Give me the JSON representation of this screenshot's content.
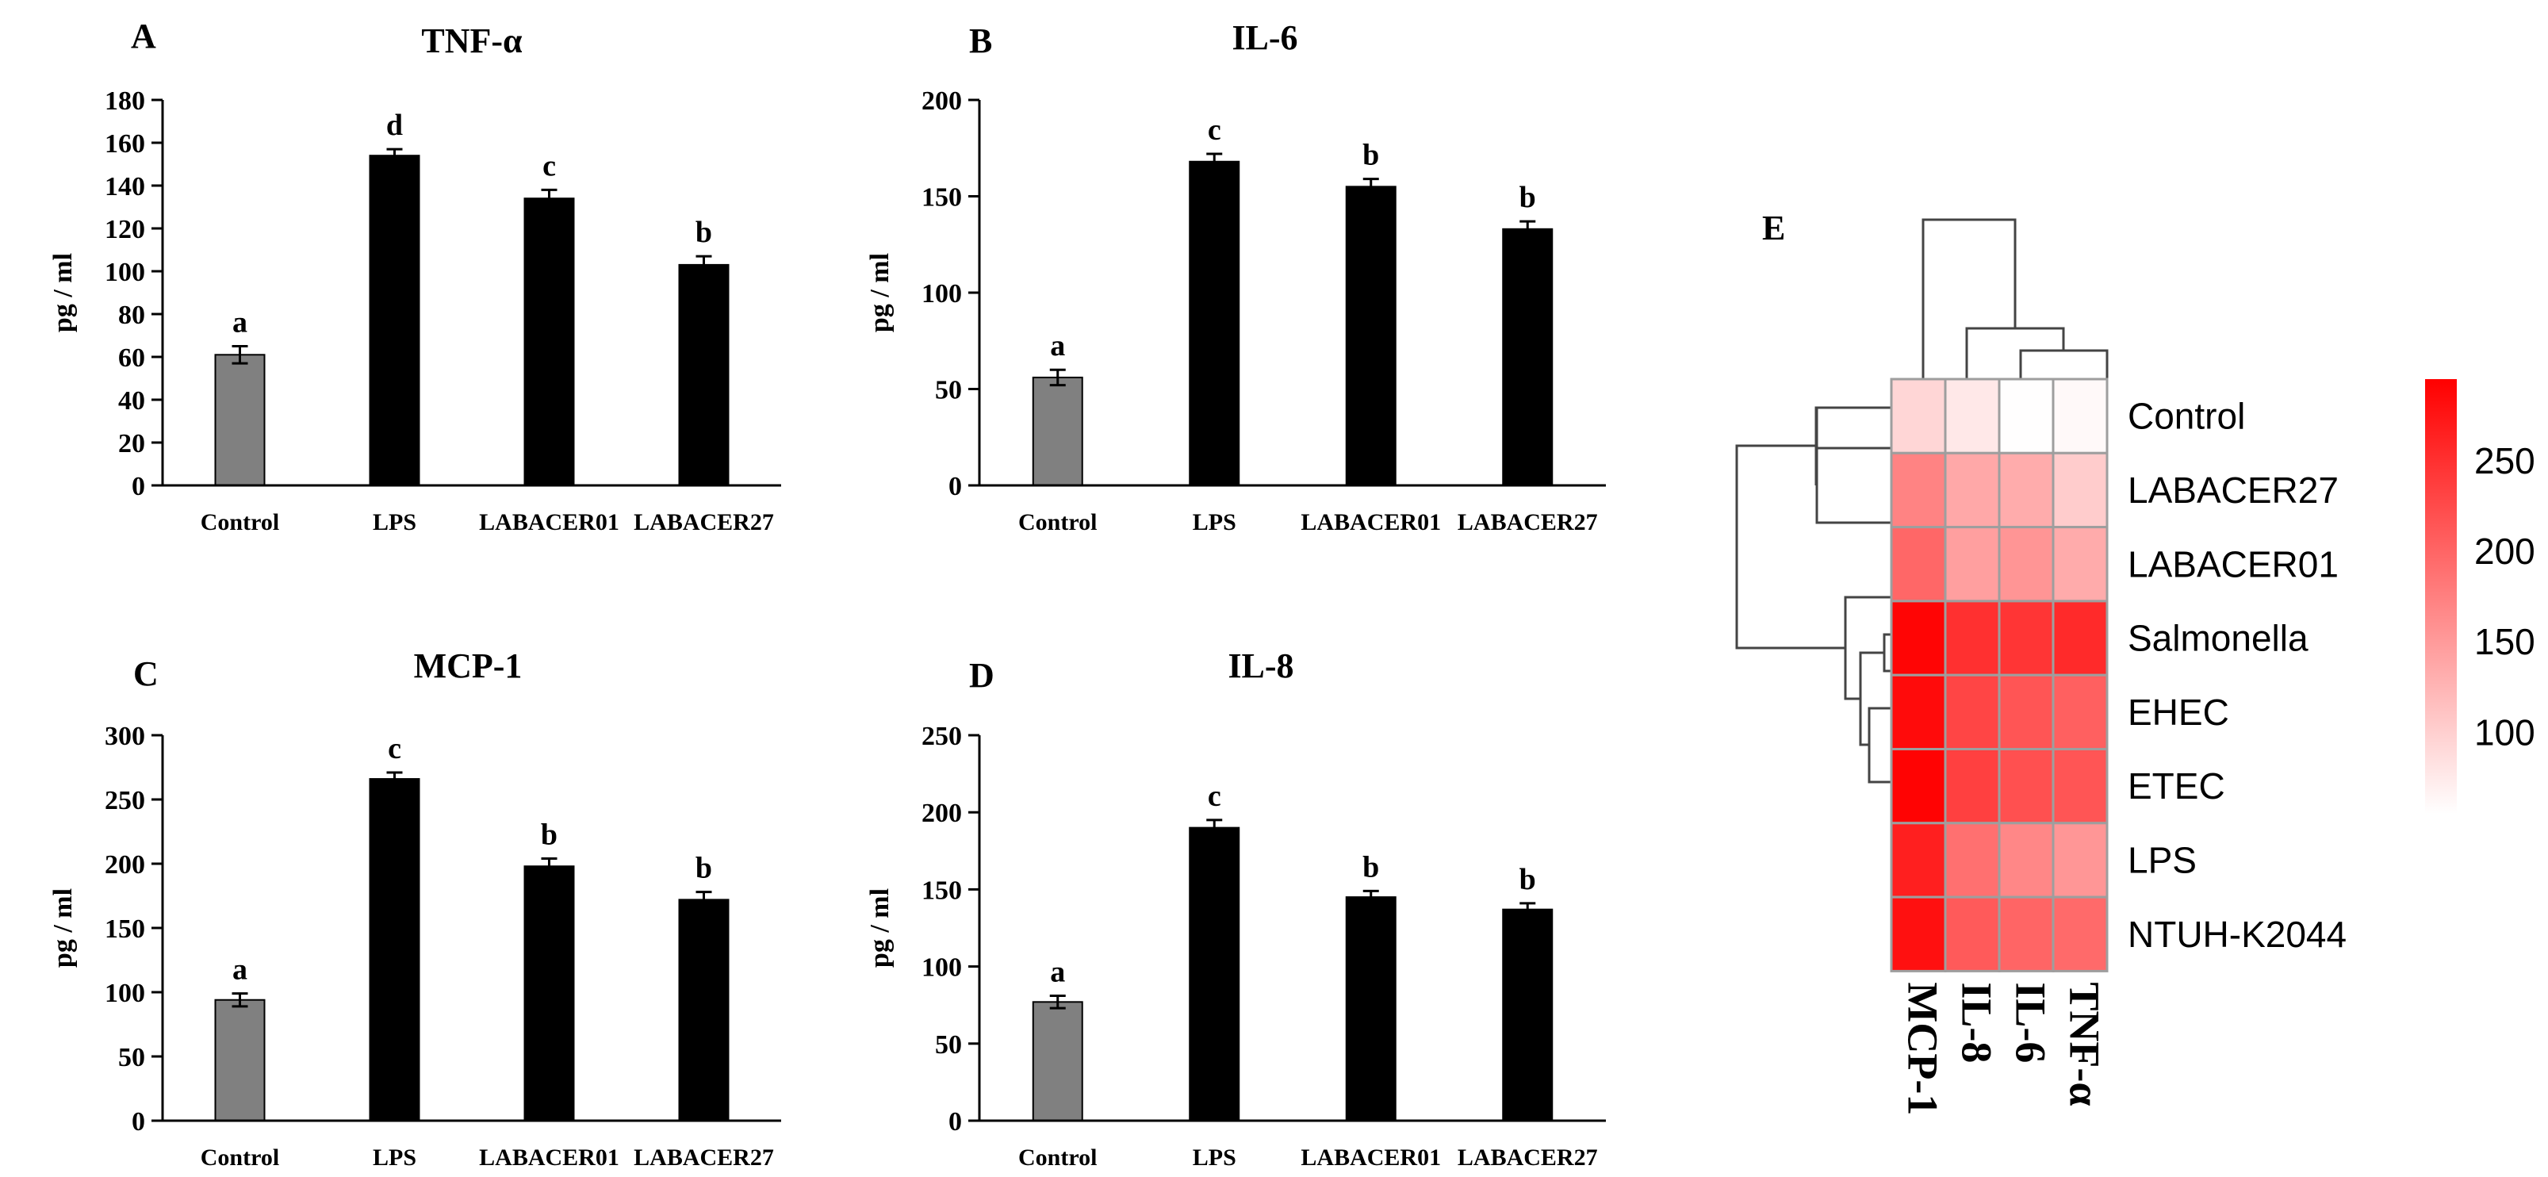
{
  "chart_data": [
    {
      "type": "bar",
      "panel_label": "A",
      "title": "TNF-α",
      "ylabel": "pg / ml",
      "xlabel": "",
      "categories": [
        "Control",
        "LPS",
        "LABACER01",
        "LABACER27"
      ],
      "values": [
        61,
        154,
        134,
        103
      ],
      "errors": [
        4,
        3,
        4,
        4
      ],
      "letters": [
        "a",
        "d",
        "c",
        "b"
      ],
      "bar_colors": [
        "#808080",
        "#000000",
        "#000000",
        "#000000"
      ],
      "ylim": [
        0,
        180
      ],
      "yticks": [
        0,
        20,
        40,
        60,
        80,
        100,
        120,
        140,
        160,
        180
      ],
      "ytick_labels": [
        "0",
        "20",
        "40",
        "60",
        "80",
        "100",
        "120",
        "140",
        "160",
        "180"
      ],
      "grid": false
    },
    {
      "type": "bar",
      "panel_label": "B",
      "title": "IL-6",
      "ylabel": "pg / ml",
      "xlabel": "",
      "categories": [
        "Control",
        "LPS",
        "LABACER01",
        "LABACER27"
      ],
      "values": [
        56,
        168,
        155,
        133
      ],
      "errors": [
        4,
        4,
        4,
        4
      ],
      "letters": [
        "a",
        "c",
        "b",
        "b"
      ],
      "bar_colors": [
        "#808080",
        "#000000",
        "#000000",
        "#000000"
      ],
      "ylim": [
        0,
        200
      ],
      "yticks": [
        0,
        50,
        100,
        150,
        200
      ],
      "ytick_labels": [
        "0",
        "50",
        "100",
        "150",
        "200"
      ],
      "grid": false
    },
    {
      "type": "bar",
      "panel_label": "C",
      "title": "MCP-1",
      "ylabel": "pg / ml",
      "xlabel": "",
      "categories": [
        "Control",
        "LPS",
        "LABACER01",
        "LABACER27"
      ],
      "values": [
        94,
        266,
        198,
        172
      ],
      "errors": [
        5,
        5,
        6,
        6
      ],
      "letters": [
        "a",
        "c",
        "b",
        "b"
      ],
      "bar_colors": [
        "#808080",
        "#000000",
        "#000000",
        "#000000"
      ],
      "ylim": [
        0,
        300
      ],
      "yticks": [
        0,
        50,
        100,
        150,
        200,
        250,
        300
      ],
      "ytick_labels": [
        "0",
        "50",
        "100",
        "150",
        "200",
        "250",
        "300"
      ],
      "grid": false
    },
    {
      "type": "bar",
      "panel_label": "D",
      "title": "IL-8",
      "ylabel": "pg / ml",
      "xlabel": "",
      "categories": [
        "Control",
        "LPS",
        "LABACER01",
        "LABACER27"
      ],
      "values": [
        77,
        190,
        145,
        137
      ],
      "errors": [
        4,
        5,
        4,
        4
      ],
      "letters": [
        "a",
        "c",
        "b",
        "b"
      ],
      "bar_colors": [
        "#808080",
        "#000000",
        "#000000",
        "#000000"
      ],
      "ylim": [
        0,
        250
      ],
      "yticks": [
        0,
        50,
        100,
        150,
        200,
        250
      ],
      "ytick_labels": [
        "0",
        "50",
        "100",
        "150",
        "200",
        "250"
      ],
      "grid": false
    },
    {
      "type": "heatmap",
      "panel_label": "E",
      "title": "",
      "rows": [
        "Control",
        "LABACER27",
        "LABACER01",
        "Salmonella",
        "EHEC",
        "ETEC",
        "LPS",
        "NTUH-K2044"
      ],
      "columns": [
        "MCP-1",
        "IL-8",
        "IL-6",
        "TNF-α"
      ],
      "values": [
        [
          94,
          77,
          56,
          61
        ],
        [
          172,
          137,
          133,
          103
        ],
        [
          198,
          145,
          155,
          134
        ],
        [
          290,
          250,
          245,
          255
        ],
        [
          285,
          230,
          215,
          205
        ],
        [
          292,
          235,
          220,
          215
        ],
        [
          266,
          190,
          168,
          154
        ],
        [
          280,
          210,
          200,
          195
        ]
      ],
      "color_scale": {
        "min": 55,
        "max": 295,
        "low_color": "#ffffff",
        "high_color": "#ff0000",
        "ticks": [
          100,
          150,
          200,
          250
        ],
        "tick_labels": [
          "100",
          "150",
          "200",
          "250"
        ]
      },
      "row_dendrogram": true,
      "column_dendrogram": true
    }
  ]
}
